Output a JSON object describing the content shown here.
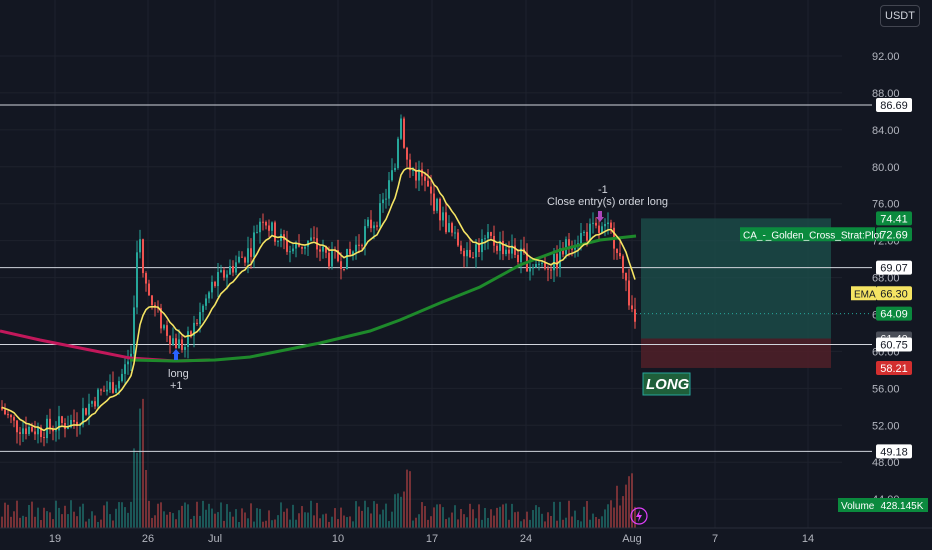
{
  "currency_button": "USDT",
  "colors": {
    "background": "#131722",
    "grid": "#1e222d",
    "up": "#26a69a",
    "down": "#ef5350",
    "ema": "#f5e463",
    "sma_up": "#1e8a2b",
    "sma_down": "#c2185b",
    "tp_zone": "#1b4e4a",
    "sl_zone": "#4c1f28",
    "green_label": "#0b8a3e",
    "red_label": "#d32f2f",
    "grey_label": "#4a4e58"
  },
  "axis_labels": {
    "price_ticks": [
      "92.00",
      "88.00",
      "84.00",
      "80.00",
      "76.00",
      "72.00",
      "68.00",
      "64.00",
      "60.00",
      "56.00",
      "52.00",
      "48.00",
      "44.00"
    ],
    "date_ticks": [
      "19",
      "26",
      "Jul",
      "10",
      "17",
      "24",
      "Aug",
      "7",
      "14"
    ]
  },
  "horizontal_levels": [
    "86.69",
    "69.07",
    "60.75",
    "49.18"
  ],
  "price_labels": {
    "tp": "74.41",
    "strategy_name": "CA_-_Golden_Cross_Strat:Plot",
    "strategy_value": "72.69",
    "line_69": "69.07",
    "ema_name": "EMA",
    "ema_value": "66.30",
    "last_price": "64.09",
    "entry": "61.40",
    "line_60": "60.75",
    "sl": "58.21",
    "line_49": "49.18",
    "volume_name": "Volume",
    "volume_value": "428.145K"
  },
  "annotations": {
    "long_entry_line1": "long",
    "long_entry_line2": "+1",
    "close_line1": "-1",
    "close_line2": "Close entry(s) order long",
    "position_label": "LONG"
  },
  "icons": [
    "lightning-icon",
    "up-arrow-icon",
    "down-arrow-icon"
  ],
  "chart_data": {
    "type": "candlestick",
    "price_axis": {
      "range": [
        42,
        96
      ],
      "ticks": [
        92,
        88,
        84,
        80,
        76,
        72,
        68,
        64,
        60,
        56,
        52,
        48,
        44
      ]
    },
    "levels": [
      86.69,
      69.07,
      60.75,
      49.18
    ],
    "ema_last": 66.3,
    "strategy_plot_last": 72.69,
    "last_price": 64.09,
    "position": {
      "side": "long",
      "entry": 61.4,
      "take_profit": 74.41,
      "stop_loss": 58.21
    },
    "volume_last": "428.145K"
  }
}
